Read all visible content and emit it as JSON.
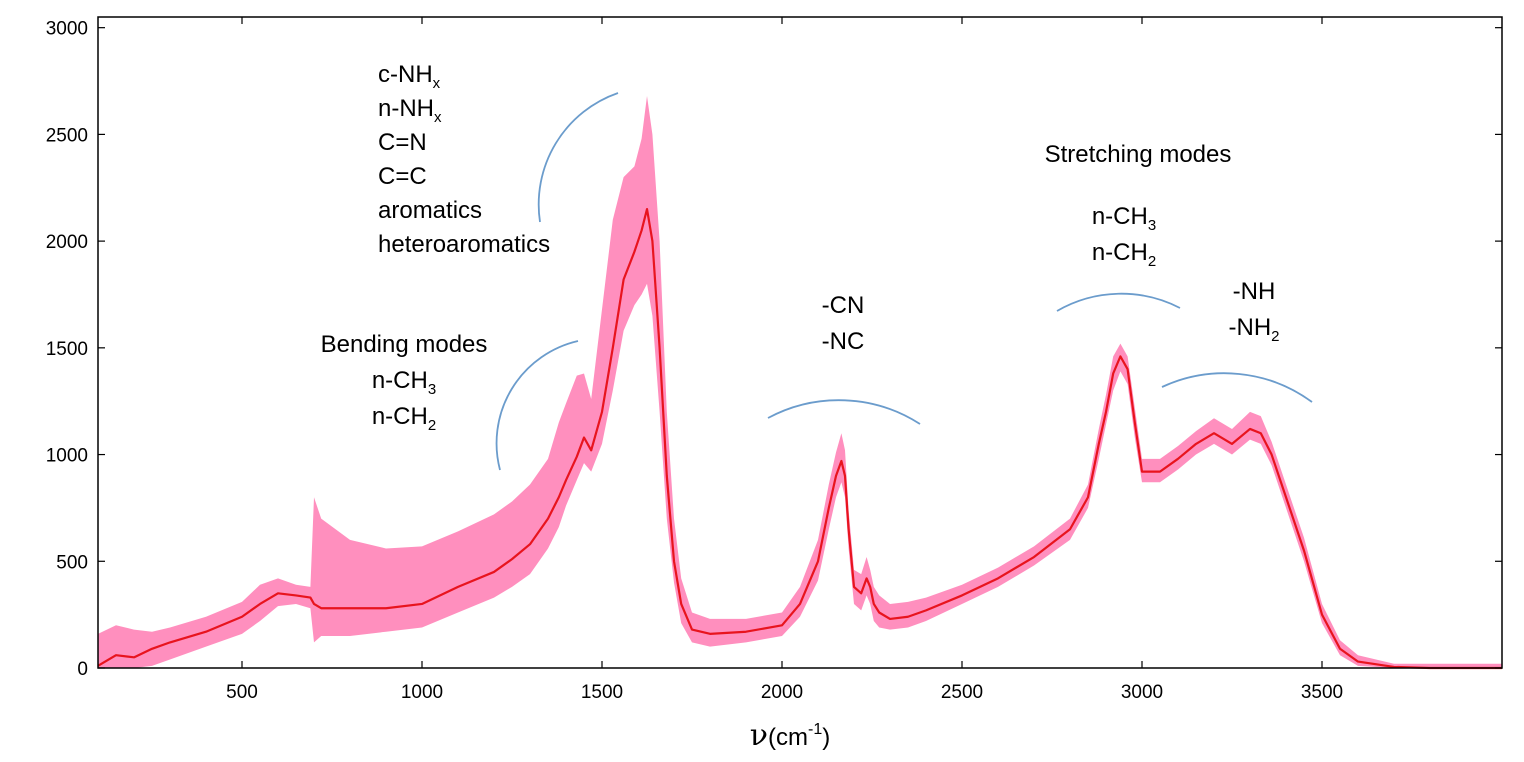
{
  "chart_data": {
    "type": "line",
    "title": "",
    "xlabel": {
      "symbol": "ν",
      "text": "(cm",
      "sup": "-1",
      "close": ")"
    },
    "ylabel": "",
    "xlim": [
      100,
      4000
    ],
    "ylim": [
      0,
      3050
    ],
    "xticks": [
      500,
      1000,
      1500,
      2000,
      2500,
      3000,
      3500
    ],
    "xtick_labels": [
      "500",
      "1000",
      "1500",
      "2000",
      "2500",
      "3000",
      "3500"
    ],
    "yticks": [
      0,
      500,
      1000,
      1500,
      2000,
      2500,
      3000
    ],
    "ytick_labels": [
      "0",
      "500",
      "1000",
      "1500",
      "2000",
      "2500",
      "3000"
    ],
    "grid": false,
    "colors": {
      "mean_line": "#e8141e",
      "band": "#ff8fbe",
      "arc": "#6b9ccc"
    },
    "series": [
      {
        "style": "mean line with shaded spread band",
        "x": [
          100,
          150,
          200,
          250,
          300,
          400,
          500,
          550,
          600,
          650,
          690,
          700,
          720,
          800,
          900,
          1000,
          1100,
          1200,
          1250,
          1300,
          1350,
          1380,
          1400,
          1430,
          1450,
          1470,
          1500,
          1530,
          1560,
          1590,
          1610,
          1625,
          1640,
          1660,
          1680,
          1700,
          1720,
          1750,
          1800,
          1900,
          2000,
          2050,
          2100,
          2130,
          2150,
          2165,
          2175,
          2185,
          2200,
          2220,
          2235,
          2245,
          2255,
          2270,
          2300,
          2350,
          2400,
          2500,
          2600,
          2700,
          2800,
          2850,
          2880,
          2900,
          2920,
          2940,
          2960,
          2980,
          3000,
          3050,
          3100,
          3150,
          3200,
          3250,
          3300,
          3330,
          3360,
          3400,
          3450,
          3500,
          3550,
          3600,
          3700,
          3800,
          3900,
          4000
        ],
        "values": [
          10,
          60,
          50,
          90,
          120,
          170,
          240,
          300,
          350,
          340,
          330,
          300,
          280,
          280,
          280,
          300,
          380,
          450,
          510,
          580,
          700,
          800,
          880,
          990,
          1080,
          1020,
          1200,
          1500,
          1820,
          1950,
          2050,
          2150,
          2000,
          1500,
          900,
          500,
          300,
          180,
          160,
          170,
          200,
          300,
          500,
          750,
          900,
          970,
          900,
          650,
          380,
          350,
          420,
          380,
          300,
          260,
          230,
          240,
          270,
          340,
          420,
          520,
          650,
          800,
          1050,
          1200,
          1380,
          1460,
          1400,
          1150,
          920,
          920,
          980,
          1050,
          1100,
          1050,
          1120,
          1100,
          1000,
          800,
          550,
          250,
          90,
          30,
          5,
          0,
          0,
          0
        ],
        "lower": [
          0,
          0,
          0,
          10,
          40,
          100,
          160,
          220,
          290,
          300,
          280,
          120,
          150,
          150,
          170,
          190,
          260,
          330,
          380,
          440,
          560,
          660,
          760,
          880,
          960,
          920,
          1050,
          1300,
          1580,
          1700,
          1750,
          1800,
          1650,
          1200,
          700,
          400,
          210,
          120,
          100,
          120,
          150,
          240,
          410,
          650,
          800,
          870,
          800,
          560,
          300,
          270,
          340,
          300,
          220,
          190,
          180,
          190,
          220,
          300,
          380,
          480,
          600,
          750,
          980,
          1140,
          1300,
          1390,
          1330,
          1080,
          870,
          870,
          930,
          1000,
          1050,
          1000,
          1070,
          1050,
          950,
          750,
          500,
          210,
          60,
          10,
          0,
          0,
          0,
          0
        ],
        "upper": [
          160,
          200,
          180,
          170,
          190,
          240,
          310,
          390,
          420,
          390,
          380,
          800,
          700,
          600,
          560,
          570,
          640,
          720,
          780,
          860,
          980,
          1150,
          1240,
          1370,
          1380,
          1260,
          1680,
          2100,
          2300,
          2350,
          2480,
          2680,
          2500,
          2000,
          1200,
          700,
          420,
          260,
          230,
          230,
          260,
          380,
          600,
          860,
          1010,
          1100,
          1020,
          740,
          460,
          440,
          520,
          460,
          380,
          340,
          300,
          310,
          330,
          390,
          470,
          570,
          700,
          860,
          1120,
          1280,
          1460,
          1520,
          1460,
          1220,
          980,
          980,
          1040,
          1110,
          1170,
          1120,
          1200,
          1180,
          1060,
          860,
          610,
          300,
          130,
          60,
          20,
          20,
          20,
          20
        ]
      }
    ],
    "annotations": [
      {
        "id": "bending",
        "lines": [
          {
            "text": "Bending modes"
          },
          {
            "text": "n-CH",
            "sub": "3"
          },
          {
            "text": "n-CH",
            "sub": "2"
          }
        ]
      },
      {
        "id": "c-n-group",
        "lines": [
          {
            "text": "c-NH",
            "sub": "x"
          },
          {
            "text": "n-NH",
            "sub": "x"
          },
          {
            "text": "C=N"
          },
          {
            "text": "C=C"
          },
          {
            "text": "aromatics"
          },
          {
            "text": "heteroaromatics"
          }
        ]
      },
      {
        "id": "cyano",
        "lines": [
          {
            "text": "-CN"
          },
          {
            "text": "-NC"
          }
        ]
      },
      {
        "id": "stretching-title",
        "lines": [
          {
            "text": "Stretching modes"
          }
        ]
      },
      {
        "id": "stretching-ch",
        "lines": [
          {
            "text": "n-CH",
            "sub": "3"
          },
          {
            "text": "n-CH",
            "sub": "2"
          }
        ]
      },
      {
        "id": "amine",
        "lines": [
          {
            "text": "-NH"
          },
          {
            "text": "-NH",
            "sub": "2"
          }
        ]
      }
    ]
  }
}
